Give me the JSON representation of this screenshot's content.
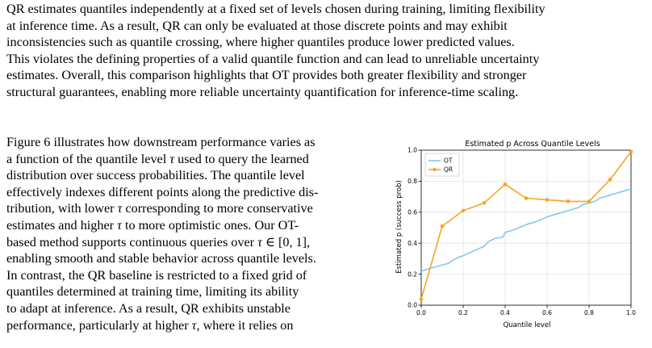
{
  "paragraph_top": [
    "QR estimates quantiles independently at a fixed set of levels chosen during training, limiting flexibility",
    "at inference time. As a result, QR can only be evaluated at those discrete points and may exhibit",
    "inconsistencies such as quantile crossing, where higher quantiles produce lower predicted values.",
    "This violates the defining properties of a valid quantile function and can lead to unreliable uncertainty",
    "estimates. Overall, this comparison highlights that OT provides both greater flexibility and stronger",
    "structural guarantees, enabling more reliable uncertainty quantification for inference-time scaling."
  ],
  "paragraph_left": {
    "l1": "Figure 6 illustrates how downstream performance varies as",
    "l2a": "a function of the quantile level ",
    "l2b": " used to query the learned",
    "l3": "distribution over success probabilities. The quantile level",
    "l4": "effectively indexes different points along the predictive dis-",
    "l5a": "tribution, with lower ",
    "l5b": " corresponding to more conservative",
    "l6a": "estimates and higher ",
    "l6b": " to more optimistic ones. Our OT-",
    "l7a": "based method supports continuous queries over ",
    "l7b": " ∈ [0, 1],",
    "l8": "enabling smooth and stable behavior across quantile levels.",
    "l9": "In contrast, the QR baseline is restricted to a fixed grid of",
    "l10": "quantiles determined at training time, limiting its ability",
    "l11": "to adapt at inference. As a result, QR exhibits unstable",
    "l12a": "performance, particularly at higher ",
    "l12b": ", where it relies on",
    "tau": "τ"
  },
  "chart_data": {
    "type": "line",
    "title": "Estimated p Across Quantile Levels",
    "xlabel": "Quantile level",
    "ylabel": "Estimated p (success prob)",
    "xlim": [
      0,
      1
    ],
    "ylim": [
      0,
      1
    ],
    "xticks": [
      "0.0",
      "0.2",
      "0.4",
      "0.6",
      "0.8",
      "1.0"
    ],
    "yticks": [
      "0.0",
      "0.2",
      "0.4",
      "0.6",
      "0.8",
      "1.0"
    ],
    "grid": true,
    "legend": "top-left",
    "series": [
      {
        "name": "OT",
        "color": "#87c7ea",
        "x": [
          0,
          0.05,
          0.1,
          0.13,
          0.15,
          0.18,
          0.2,
          0.25,
          0.3,
          0.32,
          0.35,
          0.39,
          0.4,
          0.45,
          0.5,
          0.55,
          0.6,
          0.65,
          0.7,
          0.75,
          0.77,
          0.8,
          0.83,
          0.85,
          0.9,
          0.95,
          1.0
        ],
        "y": [
          0.22,
          0.24,
          0.26,
          0.27,
          0.29,
          0.31,
          0.32,
          0.35,
          0.38,
          0.41,
          0.43,
          0.44,
          0.47,
          0.49,
          0.52,
          0.54,
          0.57,
          0.59,
          0.61,
          0.63,
          0.65,
          0.66,
          0.67,
          0.69,
          0.71,
          0.73,
          0.75
        ]
      },
      {
        "name": "QR",
        "color": "#f5a623",
        "x": [
          0.0,
          0.1,
          0.2,
          0.3,
          0.4,
          0.5,
          0.6,
          0.7,
          0.8,
          0.9,
          1.0
        ],
        "y": [
          0.04,
          0.51,
          0.61,
          0.66,
          0.78,
          0.69,
          0.68,
          0.67,
          0.67,
          0.81,
          0.99
        ]
      }
    ]
  }
}
